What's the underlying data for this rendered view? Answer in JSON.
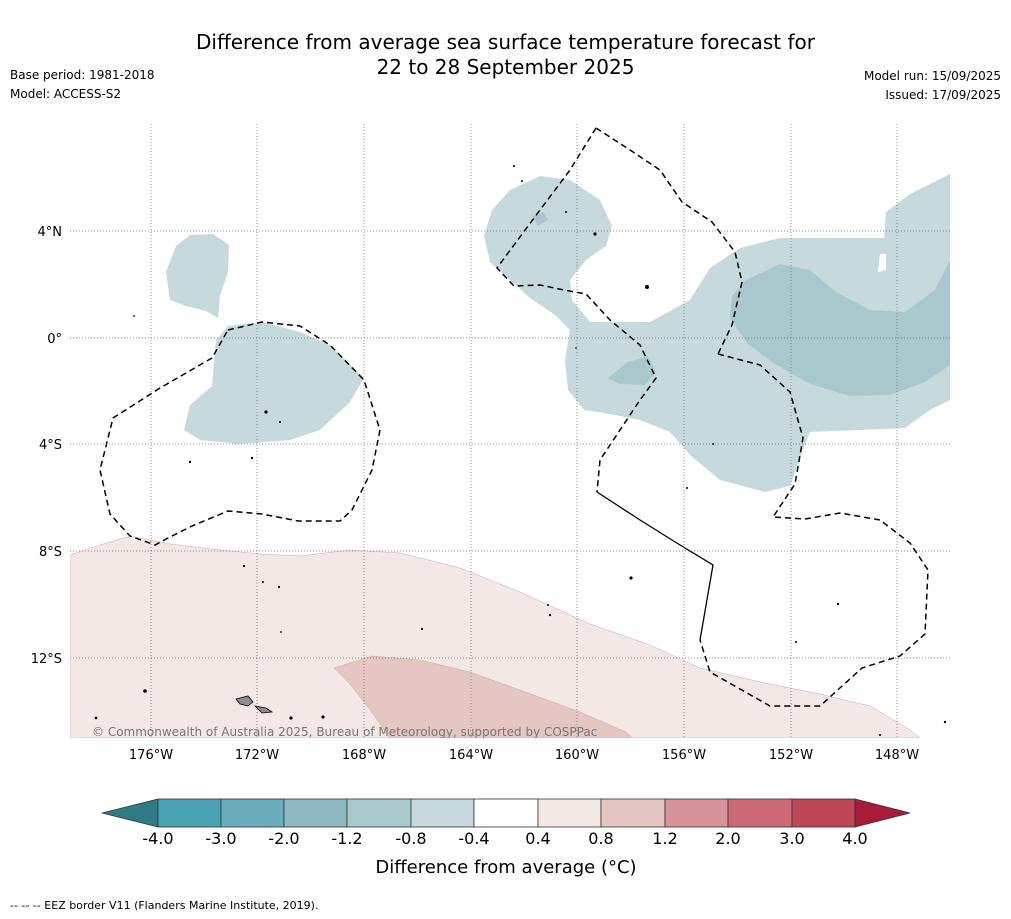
{
  "title_line1": "Difference from average sea surface temperature forecast for",
  "title_line2": "22 to 28 September 2025",
  "base_period": "Base period: 1981-2018",
  "model": "Model: ACCESS-S2",
  "model_run": "Model run: 15/09/2025",
  "issued": "Issued: 17/09/2025",
  "copyright": "© Commonwealth of Australia 2025, Bureau of Meteorology, supported by COSPPac",
  "footnote": "--  --  -- EEZ border V11 (Flanders Marine Institute, 2019).",
  "longitude_labels": [
    "176°W",
    "172°W",
    "168°W",
    "164°W",
    "160°W",
    "156°W",
    "152°W",
    "148°W"
  ],
  "latitude_labels": [
    "4°N",
    "0°",
    "4°S",
    "8°S",
    "12°S"
  ],
  "colorbar": {
    "title": "Difference from average (°C)",
    "ticks": [
      "-4.0",
      "-3.0",
      "-2.0",
      "-1.2",
      "-0.8",
      "-0.4",
      "0.4",
      "0.8",
      "1.2",
      "2.0",
      "3.0",
      "4.0"
    ],
    "colors": [
      "#2f7b85",
      "#4aa3b4",
      "#6aaebd",
      "#8dbac2",
      "#a9c8cd",
      "#c6dade",
      "#ffffff",
      "#f4e8e6",
      "#e6c6c2",
      "#d8929a",
      "#cb6a76",
      "#be4757",
      "#a81c3a"
    ]
  },
  "legend": {
    "map_colors": {
      "cool_light": "#c6dade",
      "cool_mid": "#a9c8cd",
      "warm_light": "#f4e8e6",
      "warm_mid": "#e6c6c2",
      "land": "#8c8c8c"
    }
  }
}
